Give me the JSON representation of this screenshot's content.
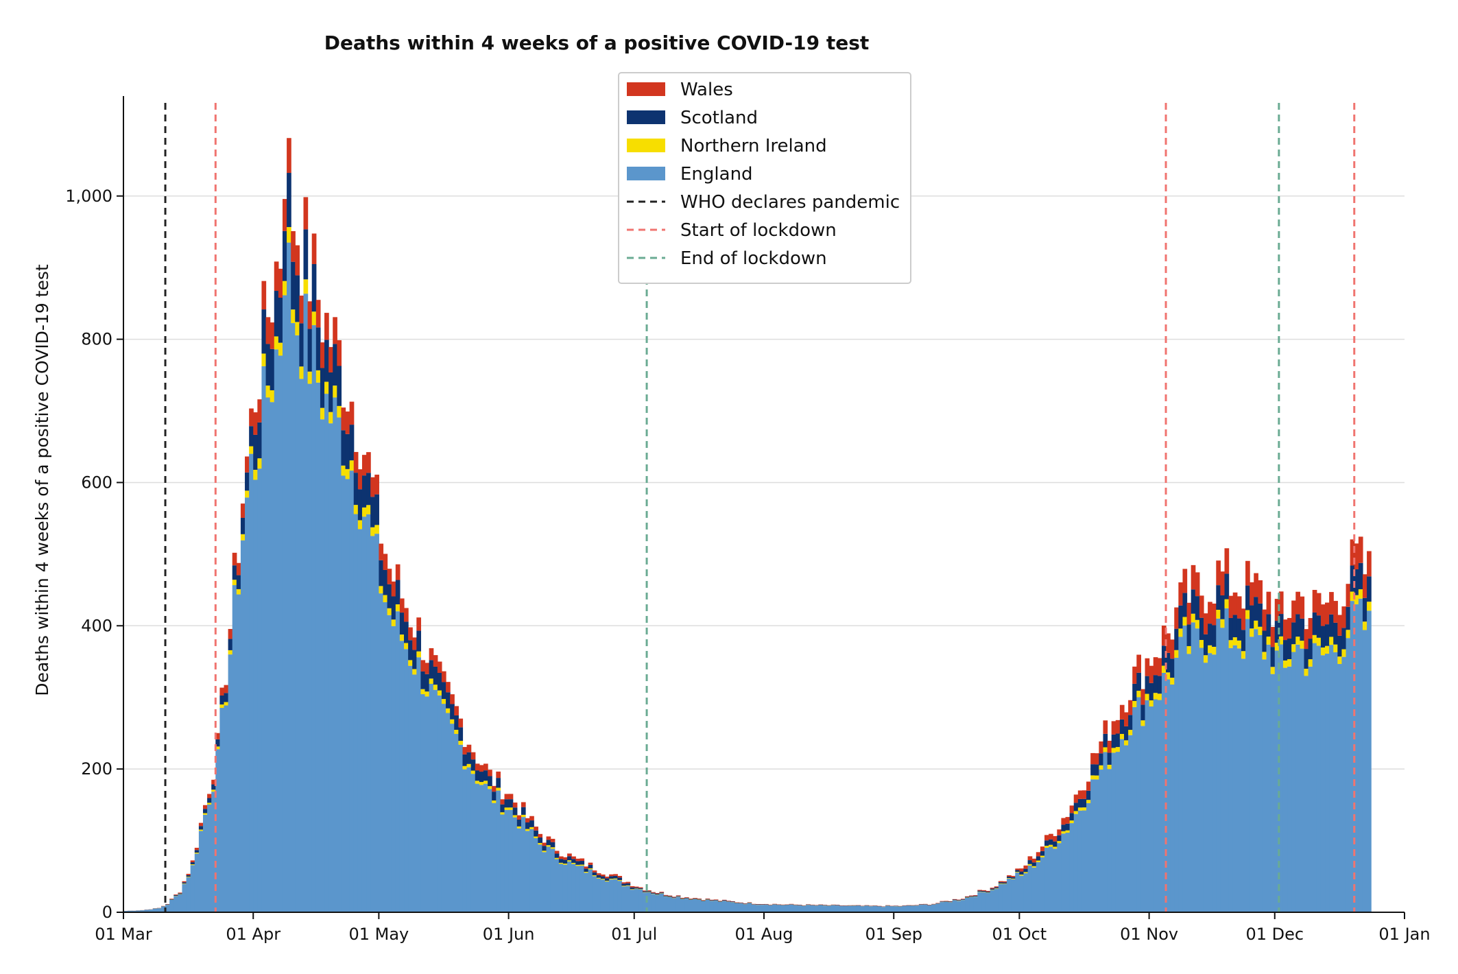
{
  "chart_data": {
    "type": "bar",
    "stacked": true,
    "title": "Deaths within 4 weeks of a positive COVID-19 test",
    "xlabel": "",
    "ylabel": "Deaths within 4 weeks of a positive COVID-19 test",
    "x_start": "2020-03-01",
    "x_end": "2021-01-01",
    "ylim": [
      0,
      1130
    ],
    "yticks": [
      0,
      200,
      400,
      600,
      800,
      1000
    ],
    "ytick_labels": [
      "0",
      "200",
      "400",
      "600",
      "800",
      "1,000"
    ],
    "xticks": [
      "2020-03-01",
      "2020-04-01",
      "2020-05-01",
      "2020-06-01",
      "2020-07-01",
      "2020-08-01",
      "2020-09-01",
      "2020-10-01",
      "2020-11-01",
      "2020-12-01",
      "2021-01-01"
    ],
    "xtick_labels": [
      "01 Mar",
      "01 Apr",
      "01 May",
      "01 Jun",
      "01 Jul",
      "01 Aug",
      "01 Sep",
      "01 Oct",
      "01 Nov",
      "01 Dec",
      "01 Jan"
    ],
    "grid": "y",
    "legend_position": "top-center",
    "series_colors": {
      "England": "#5b96cc",
      "Northern Ireland": "#f7de00",
      "Scotland": "#0d3370",
      "Wales": "#d2361f"
    },
    "legend": [
      {
        "label": "Wales",
        "kind": "patch",
        "color": "#d2361f"
      },
      {
        "label": "Scotland",
        "kind": "patch",
        "color": "#0d3370"
      },
      {
        "label": "Northern Ireland",
        "kind": "patch",
        "color": "#f7de00"
      },
      {
        "label": "England",
        "kind": "patch",
        "color": "#5b96cc"
      },
      {
        "label": "WHO declares pandemic",
        "kind": "line",
        "color": "#222222"
      },
      {
        "label": "Start of lockdown",
        "kind": "line",
        "color": "#f07470"
      },
      {
        "label": "End of lockdown",
        "kind": "line",
        "color": "#6aab93"
      }
    ],
    "events": [
      {
        "date": "2020-03-11",
        "label": "WHO declares pandemic",
        "color": "#222222"
      },
      {
        "date": "2020-03-23",
        "label": "Start of lockdown",
        "color": "#f07470"
      },
      {
        "date": "2020-07-04",
        "label": "End of lockdown",
        "color": "#6aab93"
      },
      {
        "date": "2020-11-05",
        "label": "Start of lockdown",
        "color": "#f07470"
      },
      {
        "date": "2020-12-02",
        "label": "End of lockdown",
        "color": "#6aab93"
      },
      {
        "date": "2020-12-20",
        "label": "Start of lockdown",
        "color": "#f07470"
      }
    ],
    "date_range": [
      "2020-03-01",
      "2020-12-23"
    ],
    "totals_anchors": [
      [
        "2020-03-01",
        2
      ],
      [
        "2020-03-05",
        3
      ],
      [
        "2020-03-09",
        6
      ],
      [
        "2020-03-11",
        12
      ],
      [
        "2020-03-14",
        30
      ],
      [
        "2020-03-17",
        70
      ],
      [
        "2020-03-20",
        150
      ],
      [
        "2020-03-23",
        230
      ],
      [
        "2020-03-26",
        400
      ],
      [
        "2020-03-29",
        580
      ],
      [
        "2020-04-01",
        730
      ],
      [
        "2020-04-04",
        840
      ],
      [
        "2020-04-07",
        930
      ],
      [
        "2020-04-08",
        1070
      ],
      [
        "2020-04-10",
        980
      ],
      [
        "2020-04-14",
        900
      ],
      [
        "2020-04-18",
        820
      ],
      [
        "2020-04-22",
        760
      ],
      [
        "2020-04-26",
        680
      ],
      [
        "2020-04-30",
        560
      ],
      [
        "2020-05-03",
        480
      ],
      [
        "2020-05-07",
        430
      ],
      [
        "2020-05-11",
        380
      ],
      [
        "2020-05-15",
        320
      ],
      [
        "2020-05-19",
        280
      ],
      [
        "2020-05-23",
        230
      ],
      [
        "2020-05-27",
        190
      ],
      [
        "2020-05-31",
        170
      ],
      [
        "2020-06-04",
        140
      ],
      [
        "2020-06-08",
        110
      ],
      [
        "2020-06-12",
        90
      ],
      [
        "2020-06-16",
        75
      ],
      [
        "2020-06-20",
        65
      ],
      [
        "2020-06-24",
        55
      ],
      [
        "2020-06-28",
        45
      ],
      [
        "2020-07-02",
        35
      ],
      [
        "2020-07-06",
        28
      ],
      [
        "2020-07-12",
        22
      ],
      [
        "2020-07-20",
        17
      ],
      [
        "2020-07-28",
        13
      ],
      [
        "2020-08-05",
        11
      ],
      [
        "2020-08-15",
        10
      ],
      [
        "2020-08-25",
        9
      ],
      [
        "2020-09-03",
        9
      ],
      [
        "2020-09-10",
        12
      ],
      [
        "2020-09-17",
        20
      ],
      [
        "2020-09-24",
        35
      ],
      [
        "2020-10-01",
        60
      ],
      [
        "2020-10-07",
        100
      ],
      [
        "2020-10-12",
        140
      ],
      [
        "2020-10-17",
        200
      ],
      [
        "2020-10-22",
        260
      ],
      [
        "2020-10-27",
        320
      ],
      [
        "2020-11-01",
        360
      ],
      [
        "2020-11-05",
        390
      ],
      [
        "2020-11-09",
        440
      ],
      [
        "2020-11-13",
        450
      ],
      [
        "2020-11-17",
        470
      ],
      [
        "2020-11-21",
        460
      ],
      [
        "2020-11-25",
        450
      ],
      [
        "2020-11-29",
        440
      ],
      [
        "2020-12-03",
        400
      ],
      [
        "2020-12-05",
        450
      ],
      [
        "2020-12-09",
        420
      ],
      [
        "2020-12-13",
        430
      ],
      [
        "2020-12-17",
        460
      ],
      [
        "2020-12-20",
        490
      ],
      [
        "2020-12-23",
        470
      ]
    ],
    "composition_note_hidden": true
  }
}
